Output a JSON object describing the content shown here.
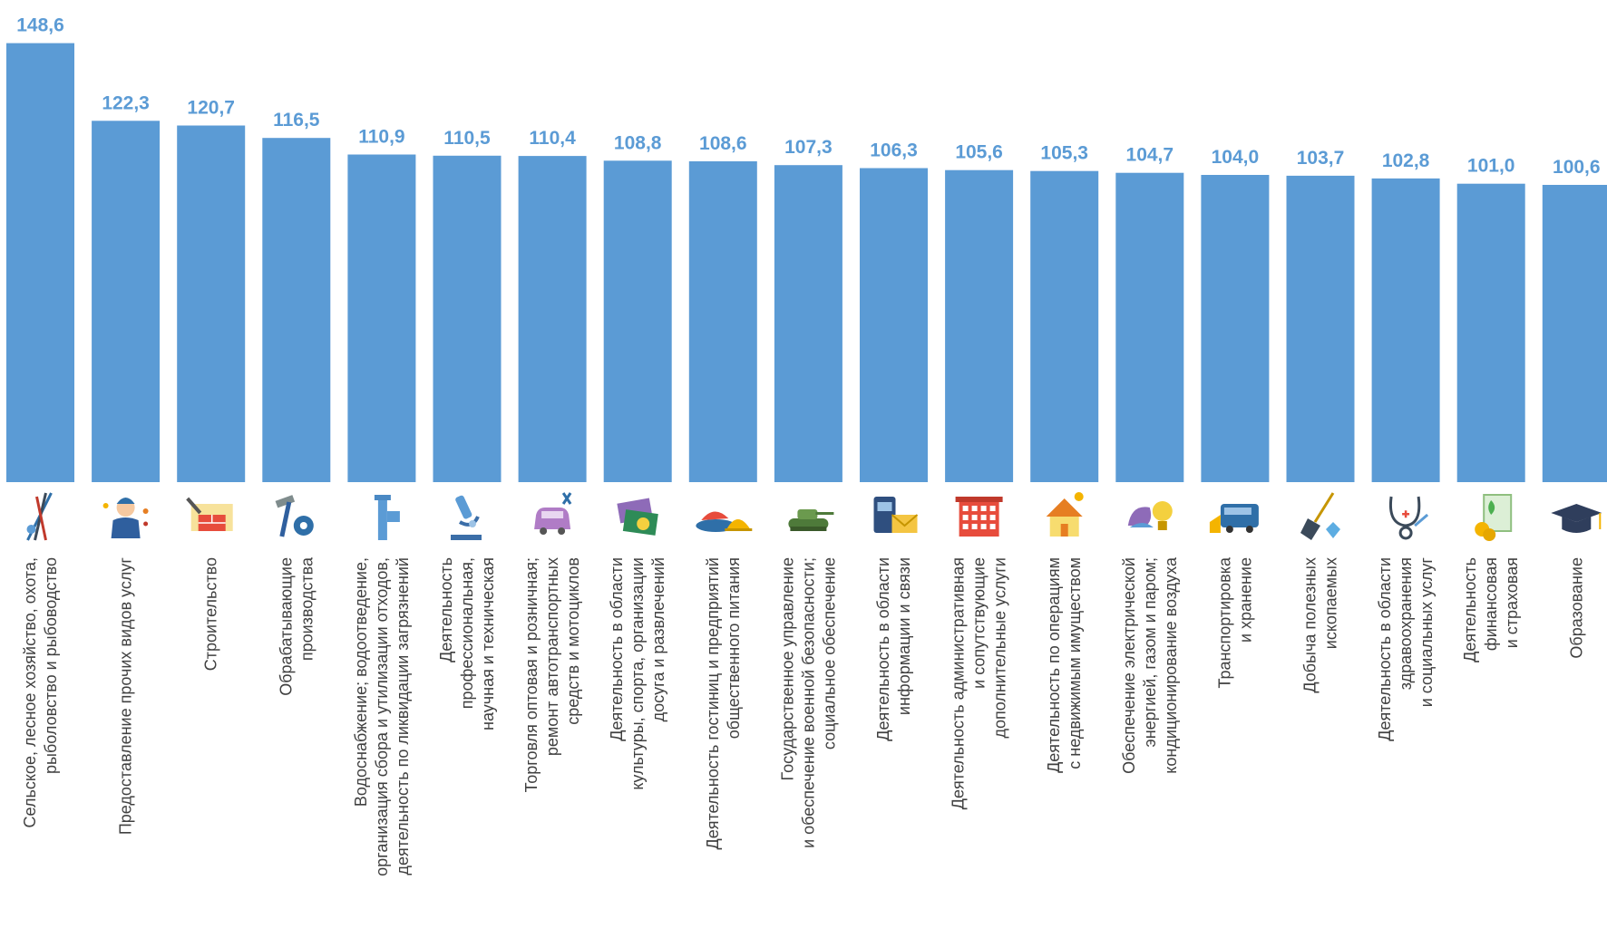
{
  "chart_data": {
    "type": "bar",
    "title": "",
    "xlabel": "",
    "ylabel": "",
    "bar_color": "#5B9BD5",
    "value_label_color": "#5B9BD5",
    "ylim": [
      0,
      150
    ],
    "categories": [
      [
        "Сельское, лесное хозяйство, охота,",
        "рыболовство и рыбоводство"
      ],
      [
        "Предоставление прочих видов услуг"
      ],
      [
        "Строительство"
      ],
      [
        "Обрабатывающие",
        "производства"
      ],
      [
        "Водоснабжение; водоотведение,",
        "организация сбора и утилизации отходов,",
        "деятельность по ликвидации загрязнений"
      ],
      [
        "Деятельность",
        "профессиональная,",
        "научная и техническая"
      ],
      [
        "Торговля оптовая и розничная;",
        "ремонт автотранспортных",
        "средств и мотоциклов"
      ],
      [
        "Деятельность в области",
        "культуры, спорта, организации",
        "досуга и развлечений"
      ],
      [
        "Деятельность гостиниц и предприятий",
        "общественного питания"
      ],
      [
        "Государственное управление",
        "и обеспечение военной безопасности;",
        "социальное обеспечение"
      ],
      [
        "Деятельность в области",
        "информации и связи"
      ],
      [
        "Деятельность административная",
        "и сопутствующие",
        "дополнительные услуги"
      ],
      [
        "Деятельность по операциям",
        "с недвижимым имуществом"
      ],
      [
        "Обеспечение электрической",
        "энергией, газом и паром;",
        "кондиционирование воздуха"
      ],
      [
        "Транспортировка",
        "и хранение"
      ],
      [
        "Добыча полезных",
        "ископаемых"
      ],
      [
        "Деятельность в области",
        "здравоохранения",
        "и социальных услуг"
      ],
      [
        "Деятельность",
        "финансовая",
        "и страховая"
      ],
      [
        "Образование"
      ]
    ],
    "values": [
      148.6,
      122.3,
      120.7,
      116.5,
      110.9,
      110.5,
      110.4,
      108.8,
      108.6,
      107.3,
      106.3,
      105.6,
      105.3,
      104.7,
      104.0,
      103.7,
      102.8,
      101.0,
      100.6
    ],
    "value_labels": [
      "148,6",
      "122,3",
      "120,7",
      "116,5",
      "110,9",
      "110,5",
      "110,4",
      "108,8",
      "108,6",
      "107,3",
      "106,3",
      "105,6",
      "105,3",
      "104,7",
      "104,0",
      "103,7",
      "102,8",
      "101,0",
      "100,6"
    ],
    "icons": [
      "fishing-rod-icon",
      "service-worker-icon",
      "brick-wall-icon",
      "hammer-gear-icon",
      "water-pipe-icon",
      "microscope-icon",
      "car-repair-icon",
      "theatre-tickets-icon",
      "restaurant-dish-icon",
      "military-tank-icon",
      "telephone-mail-icon",
      "office-building-icon",
      "house-key-icon",
      "power-lightbulb-icon",
      "bus-icon",
      "shovel-diamond-icon",
      "stethoscope-icon",
      "finance-coins-icon",
      "graduation-cap-icon"
    ]
  }
}
